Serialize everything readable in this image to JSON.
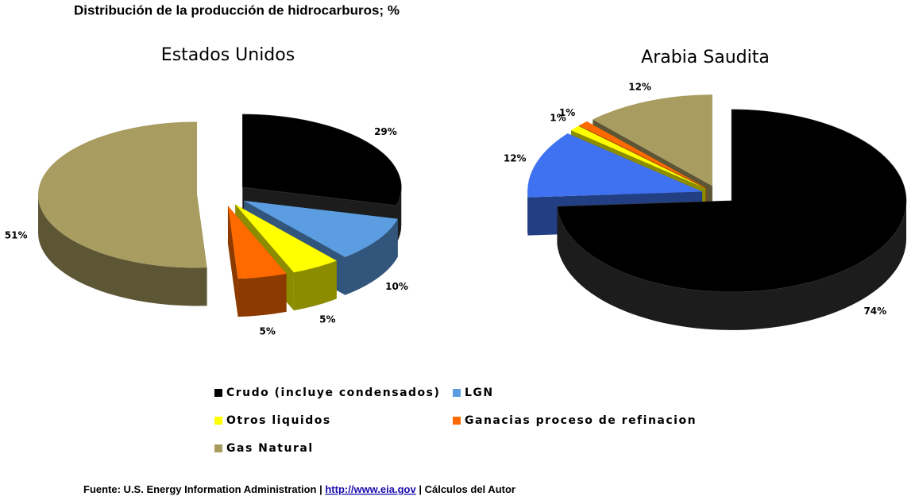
{
  "title": "Distribución de la producción de hidrocarburos; %",
  "chart_data": [
    {
      "type": "pie",
      "title": "Estados Unidos",
      "categories": [
        "Crudo (incluye condensados)",
        "LGN",
        "Otros liquidos",
        "Ganacias proceso de refinacion",
        "Gas Natural"
      ],
      "values": [
        29,
        10,
        5,
        5,
        51
      ],
      "value_labels": [
        "29%",
        "10%",
        "5%",
        "5%",
        "51%"
      ],
      "colors": [
        "#000000",
        "#5b9de0",
        "#ffff00",
        "#ff6a00",
        "#a89c60"
      ]
    },
    {
      "type": "pie",
      "title": "Arabia Saudita",
      "categories": [
        "Crudo (incluye condensados)",
        "LGN",
        "Otros liquidos",
        "Ganacias proceso de refinacion",
        "Gas Natural"
      ],
      "values": [
        74,
        12,
        1,
        1,
        12
      ],
      "value_labels": [
        "74%",
        "12%",
        "1%",
        "1%",
        "12%"
      ],
      "colors": [
        "#000000",
        "#3f72f0",
        "#ffff00",
        "#ff6a00",
        "#a89c60"
      ]
    }
  ],
  "footer": {
    "source": "Fuente:  U.S. Energy Information Administration  |",
    "link": "http://www.eia.gov",
    "note": "| Cálculos del Autor"
  }
}
